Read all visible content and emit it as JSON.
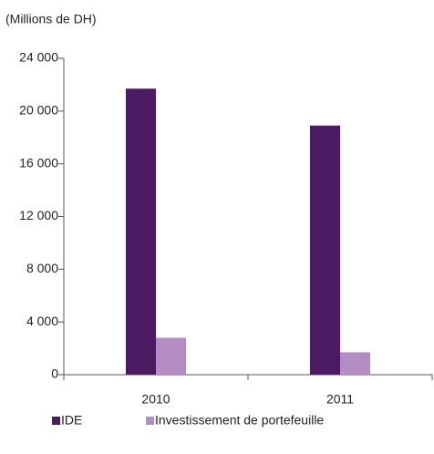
{
  "chart_data": {
    "type": "bar",
    "title": "(Millions de  DH)",
    "categories": [
      "2010",
      "2011"
    ],
    "series": [
      {
        "name": "IDE",
        "color": "#4b1a63",
        "values": [
          21700,
          18900
        ]
      },
      {
        "name": "Investissement de portefeuille",
        "color": "#b48cc4",
        "values": [
          2800,
          1700
        ]
      }
    ],
    "ylim": [
      0,
      24000
    ],
    "yticks": [
      0,
      {
        "value": 4000,
        "label": "4 000"
      },
      {
        "value": 8000,
        "label": "8 000"
      },
      {
        "value": 12000,
        "label": "12 000"
      },
      {
        "value": 16000,
        "label": "16 000"
      },
      {
        "value": 20000,
        "label": "20 000"
      },
      {
        "value": 24000,
        "label": "24 000"
      }
    ],
    "grid": false,
    "legend": "bottom"
  }
}
